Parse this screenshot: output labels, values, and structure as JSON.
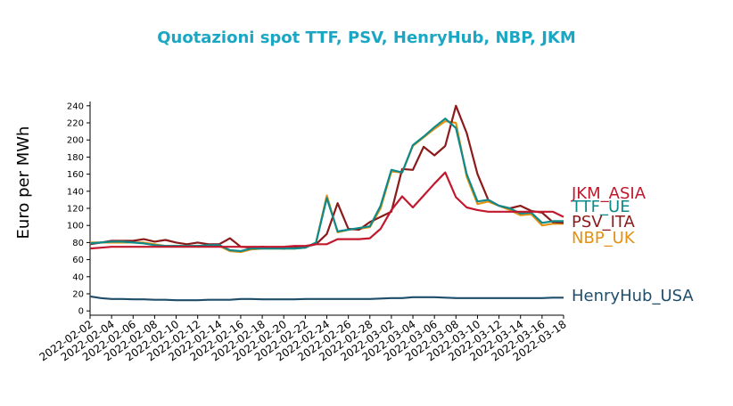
{
  "chart_data": {
    "type": "line",
    "title": "Quotazioni spot TTF, PSV, HenryHub, NBP, JKM",
    "xlabel": "",
    "ylabel": "Euro per MWh",
    "ylim": [
      -5,
      245
    ],
    "yticks": [
      0,
      20,
      40,
      60,
      80,
      100,
      120,
      140,
      160,
      180,
      200,
      220,
      240
    ],
    "grid": false,
    "legend": "inline labels at right end of lines",
    "x": [
      "2022-02-02",
      "2022-02-03",
      "2022-02-04",
      "2022-02-05",
      "2022-02-06",
      "2022-02-07",
      "2022-02-08",
      "2022-02-09",
      "2022-02-10",
      "2022-02-11",
      "2022-02-12",
      "2022-02-13",
      "2022-02-14",
      "2022-02-15",
      "2022-02-16",
      "2022-02-17",
      "2022-02-18",
      "2022-02-19",
      "2022-02-20",
      "2022-02-21",
      "2022-02-22",
      "2022-02-23",
      "2022-02-24",
      "2022-02-25",
      "2022-02-26",
      "2022-02-27",
      "2022-02-28",
      "2022-03-01",
      "2022-03-02",
      "2022-03-03",
      "2022-03-04",
      "2022-03-05",
      "2022-03-06",
      "2022-03-07",
      "2022-03-08",
      "2022-03-09",
      "2022-03-10",
      "2022-03-11",
      "2022-03-12",
      "2022-03-13",
      "2022-03-14",
      "2022-03-15",
      "2022-03-16",
      "2022-03-17",
      "2022-03-18"
    ],
    "xticklabels": [
      "2022-02-02",
      "2022-02-04",
      "2022-02-06",
      "2022-02-08",
      "2022-02-10",
      "2022-02-12",
      "2022-02-14",
      "2022-02-16",
      "2022-02-18",
      "2022-02-20",
      "2022-02-22",
      "2022-02-24",
      "2022-02-26",
      "2022-02-28",
      "2022-03-02",
      "2022-03-04",
      "2022-03-06",
      "2022-03-08",
      "2022-03-10",
      "2022-03-12",
      "2022-03-14",
      "2022-03-16",
      "2022-03-18"
    ],
    "series": [
      {
        "name": "HenryHub_USA",
        "color": "#1f4e6b",
        "values": [
          17,
          15,
          14,
          14,
          13.5,
          13.5,
          13,
          13,
          12.5,
          12.5,
          12.5,
          13,
          13,
          13,
          14,
          14,
          13.5,
          13.5,
          13.5,
          13.5,
          14,
          14,
          14,
          14,
          14,
          14,
          14,
          14.5,
          15,
          15,
          16,
          16,
          16,
          15.5,
          15,
          15,
          15,
          15,
          15,
          15,
          15,
          15,
          15,
          15.5,
          15.5
        ]
      },
      {
        "name": "NBP_UK",
        "color": "#e39110",
        "values": [
          80,
          80,
          80,
          80,
          80,
          80,
          78,
          76,
          76,
          76,
          76,
          76,
          76,
          70,
          69,
          72,
          73,
          73,
          73,
          73,
          74,
          80,
          135,
          92,
          95,
          96,
          98,
          120,
          163,
          162,
          193,
          203,
          213,
          222,
          220,
          157,
          125,
          128,
          123,
          118,
          112,
          113,
          100,
          102,
          102
        ]
      },
      {
        "name": "PSV_ITA",
        "color": "#8b1a1a",
        "values": [
          78,
          80,
          82,
          82,
          82,
          84,
          81,
          83,
          80,
          78,
          80,
          78,
          78,
          85,
          75,
          74,
          75,
          74,
          73,
          74,
          75,
          78,
          90,
          126,
          96,
          95,
          104,
          110,
          116,
          166,
          165,
          192,
          182,
          193,
          240,
          208,
          160,
          130,
          123,
          120,
          123,
          117,
          115,
          104,
          103
        ]
      },
      {
        "name": "TTF_UE",
        "color": "#0e8a8a",
        "values": [
          79,
          80,
          81,
          81,
          80,
          79,
          77,
          76,
          76,
          76,
          76,
          77,
          77,
          71,
          70,
          73,
          73,
          73,
          73,
          73,
          74,
          80,
          132,
          93,
          95,
          97,
          99,
          123,
          165,
          162,
          194,
          204,
          215,
          225,
          214,
          160,
          128,
          130,
          123,
          120,
          114,
          115,
          103,
          105,
          105
        ]
      },
      {
        "name": "JKM_ASIA",
        "color": "#c2182e",
        "values": [
          73,
          74,
          75,
          75,
          75,
          75,
          75,
          75,
          75,
          75,
          75,
          75,
          75,
          75,
          75,
          75,
          75,
          75,
          75,
          76,
          76,
          78,
          78,
          84,
          84,
          84,
          85,
          96,
          118,
          134,
          121,
          135,
          149,
          162,
          133,
          121,
          118,
          116,
          116,
          116,
          116,
          116,
          116,
          116,
          110
        ]
      }
    ]
  }
}
